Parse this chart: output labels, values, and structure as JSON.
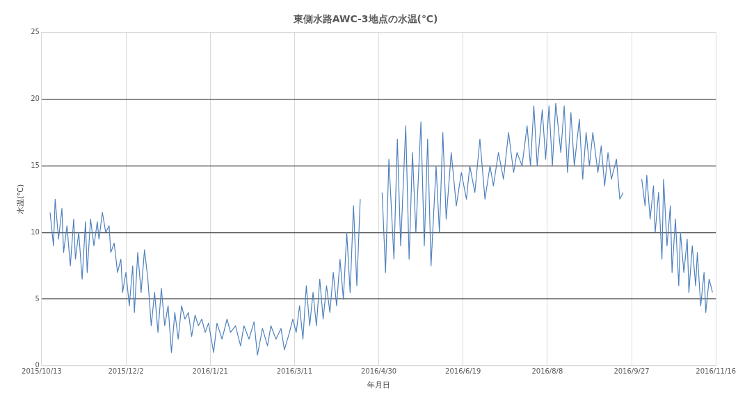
{
  "chart_data": {
    "type": "line",
    "title": "東側水路AWC-3地点の水温(℃)",
    "xlabel": "年月日",
    "ylabel": "水温(℃)",
    "x": [
      "2015-10-18",
      "2015-10-20",
      "2015-10-21",
      "2015-10-23",
      "2015-10-25",
      "2015-10-26",
      "2015-10-28",
      "2015-10-30",
      "2015-11-01",
      "2015-11-02",
      "2015-11-04",
      "2015-11-06",
      "2015-11-08",
      "2015-11-09",
      "2015-11-11",
      "2015-11-13",
      "2015-11-15",
      "2015-11-16",
      "2015-11-18",
      "2015-11-20",
      "2015-11-22",
      "2015-11-23",
      "2015-11-25",
      "2015-11-27",
      "2015-11-29",
      "2015-11-30",
      "2015-12-02",
      "2015-12-04",
      "2015-12-06",
      "2015-12-07",
      "2015-12-09",
      "2015-12-11",
      "2015-12-13",
      "2015-12-15",
      "2015-12-17",
      "2015-12-19",
      "2015-12-21",
      "2015-12-23",
      "2015-12-25",
      "2015-12-27",
      "2015-12-29",
      "2015-12-31",
      "2016-01-02",
      "2016-01-04",
      "2016-01-06",
      "2016-01-08",
      "2016-01-10",
      "2016-01-12",
      "2016-01-14",
      "2016-01-16",
      "2016-01-18",
      "2016-01-20",
      "2016-01-23",
      "2016-01-25",
      "2016-01-28",
      "2016-01-31",
      "2016-02-02",
      "2016-02-05",
      "2016-02-08",
      "2016-02-10",
      "2016-02-13",
      "2016-02-16",
      "2016-02-18",
      "2016-02-21",
      "2016-02-24",
      "2016-02-26",
      "2016-02-29",
      "2016-03-03",
      "2016-03-05",
      "2016-03-08",
      "2016-03-10",
      "2016-03-12",
      "2016-03-14",
      "2016-03-16",
      "2016-03-18",
      "2016-03-20",
      "2016-03-22",
      "2016-03-24",
      "2016-03-26",
      "2016-03-28",
      "2016-03-30",
      "2016-04-01",
      "2016-04-03",
      "2016-04-05",
      "2016-04-07",
      "2016-04-09",
      "2016-04-11",
      "2016-04-13",
      "2016-04-15",
      "2016-04-17",
      "2016-04-19",
      "2016-04-25",
      "2016-05-02",
      "2016-05-04",
      "2016-05-06",
      "2016-05-09",
      "2016-05-11",
      "2016-05-13",
      "2016-05-16",
      "2016-05-18",
      "2016-05-20",
      "2016-05-22",
      "2016-05-25",
      "2016-05-27",
      "2016-05-29",
      "2016-05-31",
      "2016-06-03",
      "2016-06-05",
      "2016-06-07",
      "2016-06-09",
      "2016-06-12",
      "2016-06-15",
      "2016-06-18",
      "2016-06-21",
      "2016-06-23",
      "2016-06-26",
      "2016-06-29",
      "2016-07-02",
      "2016-07-05",
      "2016-07-07",
      "2016-07-10",
      "2016-07-13",
      "2016-07-16",
      "2016-07-19",
      "2016-07-21",
      "2016-07-24",
      "2016-07-27",
      "2016-07-29",
      "2016-07-31",
      "2016-08-02",
      "2016-08-05",
      "2016-08-07",
      "2016-08-09",
      "2016-08-11",
      "2016-08-13",
      "2016-08-16",
      "2016-08-18",
      "2016-08-20",
      "2016-08-22",
      "2016-08-24",
      "2016-08-27",
      "2016-08-29",
      "2016-08-31",
      "2016-09-02",
      "2016-09-04",
      "2016-09-07",
      "2016-09-09",
      "2016-09-11",
      "2016-09-13",
      "2016-09-15",
      "2016-09-18",
      "2016-09-20",
      "2016-09-22",
      "2016-09-27",
      "2016-10-03",
      "2016-10-05",
      "2016-10-06",
      "2016-10-08",
      "2016-10-10",
      "2016-10-11",
      "2016-10-13",
      "2016-10-15",
      "2016-10-16",
      "2016-10-18",
      "2016-10-20",
      "2016-10-21",
      "2016-10-23",
      "2016-10-25",
      "2016-10-26",
      "2016-10-28",
      "2016-10-30",
      "2016-10-31",
      "2016-11-02",
      "2016-11-04",
      "2016-11-05",
      "2016-11-07",
      "2016-11-09",
      "2016-11-10",
      "2016-11-12",
      "2016-11-14"
    ],
    "values": [
      11.5,
      9,
      12.5,
      9.5,
      11.8,
      8.5,
      10.5,
      7.5,
      11,
      8,
      10,
      6.5,
      10.8,
      7,
      11,
      9,
      10.8,
      9.5,
      11.5,
      10,
      10.5,
      8.5,
      9.2,
      7,
      8,
      5.5,
      7,
      4.5,
      7.5,
      4,
      8.5,
      5.5,
      8.7,
      6.5,
      3,
      5.5,
      2.5,
      5.8,
      3,
      4.5,
      1,
      4,
      2,
      4.5,
      3.5,
      4,
      2.2,
      3.8,
      3,
      3.5,
      2.5,
      3.2,
      1,
      3.2,
      2,
      3.5,
      2.5,
      3,
      1.5,
      3,
      2,
      3.3,
      0.8,
      2.8,
      1.5,
      3,
      2,
      2.8,
      1.2,
      2.5,
      3.5,
      2.5,
      4.5,
      2,
      6,
      3,
      5.5,
      3,
      6.5,
      3.5,
      6,
      4,
      7,
      4.5,
      8,
      5,
      10,
      5.5,
      12,
      6,
      12.5,
      null,
      13,
      7,
      15.5,
      8,
      17,
      9,
      18,
      8,
      16,
      10,
      18.3,
      9,
      17,
      7.5,
      15,
      10,
      17.5,
      11,
      16,
      12,
      14.5,
      12.5,
      15,
      13,
      17,
      12.5,
      15,
      13.5,
      16,
      14,
      17.5,
      14.5,
      16,
      15,
      18,
      15,
      19.5,
      15,
      19.2,
      15.5,
      19.5,
      15,
      19.7,
      16,
      19.5,
      14.5,
      19,
      15,
      18.5,
      14,
      17.5,
      15,
      17.5,
      14.5,
      16.5,
      13.5,
      16,
      14,
      15.5,
      12.5,
      13,
      null,
      14,
      12,
      14.3,
      11,
      13.5,
      10,
      13,
      8,
      14,
      9,
      12,
      7,
      11,
      6,
      10,
      7,
      9.5,
      5.5,
      9,
      6,
      8.5,
      4.5,
      7,
      4,
      6.5,
      5.5
    ],
    "color": "#4f81bd",
    "marker": "none",
    "line_style": "solid",
    "ylim": [
      0,
      25
    ],
    "yticks": [
      0,
      5,
      10,
      15,
      20,
      25
    ],
    "xlim": [
      "2015-10-13",
      "2016-11-16"
    ],
    "xticks": [
      {
        "value": "2015-10-13",
        "label": "2015/10/13"
      },
      {
        "value": "2015-12-02",
        "label": "2015/12/2"
      },
      {
        "value": "2016-01-21",
        "label": "2016/1/21"
      },
      {
        "value": "2016-03-11",
        "label": "2016/3/11"
      },
      {
        "value": "2016-04-30",
        "label": "2016/4/30"
      },
      {
        "value": "2016-06-19",
        "label": "2016/6/19"
      },
      {
        "value": "2016-08-08",
        "label": "2016/8/8"
      },
      {
        "value": "2016-09-27",
        "label": "2016/9/27"
      },
      {
        "value": "2016-11-16",
        "label": "2016/11/16"
      }
    ],
    "grid": true,
    "legend": false
  }
}
